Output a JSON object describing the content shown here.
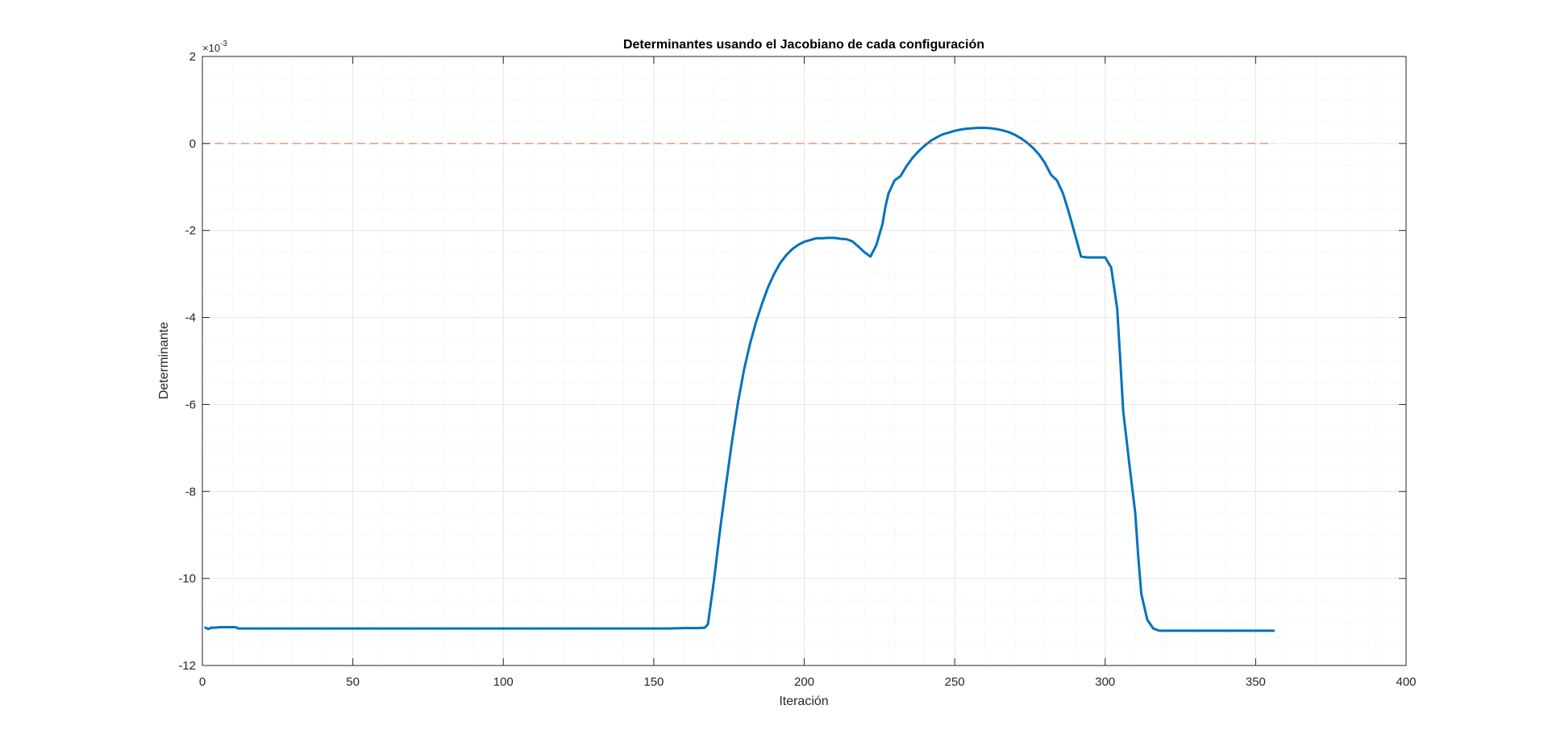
{
  "chart_data": {
    "type": "line",
    "title": "Determinantes usando el Jacobiano de cada configuración",
    "xlabel": "Iteración",
    "ylabel": "Determinante",
    "y_exponent_label": "10",
    "y_exponent_power": "-3",
    "y_exponent_prefix": "×",
    "xlim": [
      0,
      400
    ],
    "ylim": [
      -12,
      2
    ],
    "xticks": [
      0,
      50,
      100,
      150,
      200,
      250,
      300,
      350,
      400
    ],
    "yticks": [
      -12,
      -10,
      -8,
      -6,
      -4,
      -2,
      0,
      2
    ],
    "xtick_labels": [
      "0",
      "50",
      "100",
      "150",
      "200",
      "250",
      "300",
      "350",
      "400"
    ],
    "ytick_labels": [
      "-12",
      "-10",
      "-8",
      "-6",
      "-4",
      "-2",
      "0",
      "2"
    ],
    "grid": true,
    "minor_grid": true,
    "x_minor_step": 10,
    "y_minor_step": 0.5,
    "colors": {
      "series": "#0072BD",
      "reference": "#D95319",
      "axis": "#262626",
      "grid": "#E6E6E6",
      "minor_grid": "#EBEBEB"
    },
    "series": [
      {
        "style": "solid",
        "x": [
          1,
          2,
          3,
          4,
          6,
          8,
          10,
          11,
          12,
          15,
          20,
          40,
          60,
          80,
          100,
          120,
          140,
          155,
          160,
          165,
          167,
          168,
          170,
          172,
          174,
          176,
          178,
          180,
          182,
          184,
          186,
          188,
          190,
          192,
          194,
          196,
          198,
          200,
          202,
          204,
          206,
          208,
          210,
          212,
          214,
          216,
          218,
          220,
          222,
          224,
          226,
          227,
          228,
          230,
          232,
          234,
          236,
          238,
          240,
          242,
          244,
          246,
          248,
          250,
          252,
          254,
          256,
          258,
          260,
          262,
          264,
          266,
          268,
          270,
          272,
          274,
          276,
          278,
          280,
          282,
          284,
          286,
          288,
          290,
          292,
          294,
          296,
          298,
          300,
          302,
          304,
          305,
          306,
          308,
          310,
          311,
          312,
          314,
          316,
          318,
          320,
          322,
          324,
          326,
          328,
          330,
          332,
          334,
          336,
          340,
          345,
          350,
          355,
          356
        ],
        "y": [
          -11.13,
          -11.16,
          -11.13,
          -11.13,
          -11.12,
          -11.12,
          -11.12,
          -11.12,
          -11.15,
          -11.15,
          -11.15,
          -11.15,
          -11.15,
          -11.15,
          -11.15,
          -11.15,
          -11.15,
          -11.15,
          -11.14,
          -11.14,
          -11.13,
          -11.05,
          -10.05,
          -8.9,
          -7.85,
          -6.85,
          -5.95,
          -5.2,
          -4.6,
          -4.1,
          -3.68,
          -3.3,
          -3.0,
          -2.75,
          -2.57,
          -2.43,
          -2.33,
          -2.26,
          -2.22,
          -2.18,
          -2.18,
          -2.17,
          -2.17,
          -2.19,
          -2.2,
          -2.25,
          -2.37,
          -2.5,
          -2.6,
          -2.33,
          -1.85,
          -1.45,
          -1.15,
          -0.85,
          -0.75,
          -0.52,
          -0.33,
          -0.18,
          -0.05,
          0.06,
          0.14,
          0.21,
          0.25,
          0.29,
          0.32,
          0.34,
          0.35,
          0.36,
          0.36,
          0.35,
          0.33,
          0.3,
          0.26,
          0.2,
          0.12,
          0.02,
          -0.1,
          -0.25,
          -0.45,
          -0.72,
          -0.85,
          -1.15,
          -1.6,
          -2.1,
          -2.6,
          -2.62,
          -2.62,
          -2.62,
          -2.62,
          -2.85,
          -3.8,
          -4.95,
          -6.15,
          -7.35,
          -8.5,
          -9.5,
          -10.35,
          -10.95,
          -11.15,
          -11.2,
          -11.2,
          -11.2,
          -11.2,
          -11.2,
          -11.2,
          -11.2,
          -11.2,
          -11.2,
          -11.2,
          -11.2,
          -11.2,
          -11.2,
          -11.2,
          -11.2
        ]
      },
      {
        "style": "dashed",
        "x": [
          0,
          356
        ],
        "y": [
          0,
          0
        ]
      }
    ]
  }
}
